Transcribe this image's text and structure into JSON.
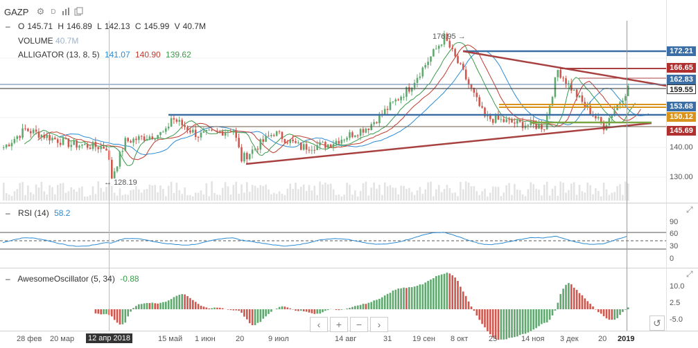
{
  "header": {
    "ticker": "GAZP",
    "interval": "D",
    "ohlc": {
      "o_label": "O",
      "o": "145.71",
      "h_label": "H",
      "h": "146.89",
      "l_label": "L",
      "l": "142.13",
      "c_label": "C",
      "c": "145.99",
      "v_label": "V",
      "v": "40.7M"
    },
    "icons": [
      "gear-icon",
      "bar-chart-icon",
      "copy-icon"
    ]
  },
  "indicators": {
    "volume": {
      "label": "VOLUME",
      "value": "40.7M"
    },
    "alligator": {
      "label": "ALLIGATOR (13, 8, 5)",
      "jaw": "141.07",
      "teeth": "140.90",
      "lips": "139.62",
      "colors": {
        "jaw": "#2b8bd4",
        "teeth": "#c0392b",
        "lips": "#3a9a4a"
      }
    }
  },
  "price_axis": {
    "ticks": [
      "140.00",
      "130.00"
    ],
    "tags": [
      {
        "value": "172.21",
        "color": "#3a6ea5"
      },
      {
        "value": "166.65",
        "color": "#b03030"
      },
      {
        "value": "162.83",
        "color": "#3a6ea5"
      },
      {
        "value": "159.55",
        "color": "#ffffff"
      },
      {
        "value": "153.68",
        "color": "#3a6ea5"
      },
      {
        "value": "150.12",
        "color": "#d9921a"
      },
      {
        "value": "145.69",
        "color": "#b03030"
      }
    ]
  },
  "annotations": {
    "high": "176.95",
    "low": "128.19"
  },
  "rsi": {
    "label": "RSI (14)",
    "value": "58.2",
    "ticks": [
      "90",
      "60",
      "30",
      "0"
    ]
  },
  "ao": {
    "label": "AwesomeOscillator (5, 34)",
    "value": "-0.88",
    "ticks": [
      "10.0",
      "2.5",
      "-5.0"
    ]
  },
  "time_axis": {
    "labels": [
      "28 фев",
      "20 мар",
      "12 апр 2018",
      "15 май",
      "1 июн",
      "20",
      "9 июл",
      "14 авг",
      "31",
      "19 сен",
      "8 окт",
      "25",
      "14 ноя",
      "3 дек",
      "20",
      "2019"
    ]
  },
  "nav": {
    "prev": "‹",
    "zoom_in": "+",
    "zoom_out": "−",
    "next": "›",
    "reset": "↺"
  },
  "colors": {
    "up": "#5fa86e",
    "down": "#d0574d",
    "trend_red": "#a84040",
    "trend_blue": "#3a6ea5",
    "trend_green": "#7aa642",
    "trend_orange": "#d9921a"
  }
}
